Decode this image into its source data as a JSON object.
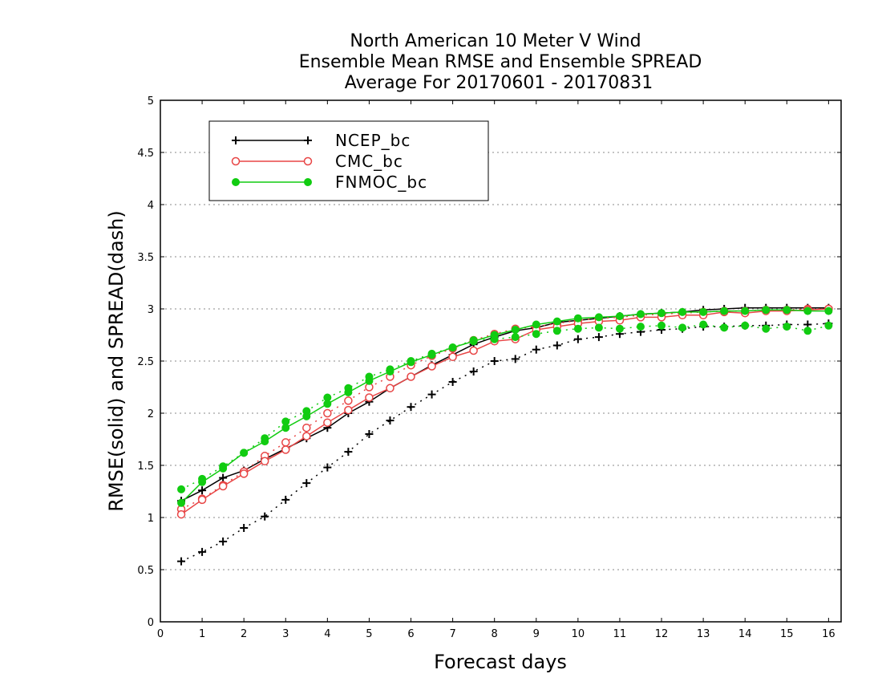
{
  "chart_data": {
    "type": "line",
    "title_lines": [
      "North American 10 Meter V Wind",
      "Ensemble Mean RMSE and Ensemble SPREAD",
      "Average For 20170601 - 20170831"
    ],
    "xlabel": "Forecast days",
    "ylabel": "RMSE(solid) and SPREAD(dash)",
    "xlim": [
      0,
      16.3
    ],
    "ylim": [
      0,
      5
    ],
    "xticks": [
      0,
      1,
      2,
      3,
      4,
      5,
      6,
      7,
      8,
      9,
      10,
      11,
      12,
      13,
      14,
      15,
      16
    ],
    "yticks": [
      0,
      0.5,
      1,
      1.5,
      2,
      2.5,
      3,
      3.5,
      4,
      4.5,
      5
    ],
    "xtick_labels": [
      "0",
      "1",
      "2",
      "3",
      "4",
      "5",
      "6",
      "7",
      "8",
      "9",
      "10",
      "11",
      "12",
      "13",
      "14",
      "15",
      "16"
    ],
    "ytick_labels": [
      "0",
      "0.5",
      "1",
      "1.5",
      "2",
      "2.5",
      "3",
      "3.5",
      "4",
      "4.5",
      "5"
    ],
    "grid": "horizontal dotted",
    "legend_position": "top-left",
    "x": [
      0.5,
      1,
      1.5,
      2,
      2.5,
      3,
      3.5,
      4,
      4.5,
      5,
      5.5,
      6,
      6.5,
      7,
      7.5,
      8,
      8.5,
      9,
      9.5,
      10,
      10.5,
      11,
      11.5,
      12,
      12.5,
      13,
      13.5,
      14,
      14.5,
      15,
      15.5,
      16
    ],
    "series": [
      {
        "name": "NCEP_bc",
        "color": "#000000",
        "marker": "plus",
        "rmse": [
          1.16,
          1.26,
          1.38,
          1.45,
          1.56,
          1.66,
          1.76,
          1.86,
          2.0,
          2.11,
          2.24,
          2.35,
          2.46,
          2.56,
          2.66,
          2.73,
          2.79,
          2.82,
          2.87,
          2.89,
          2.91,
          2.93,
          2.95,
          2.96,
          2.97,
          2.99,
          3.0,
          3.01,
          3.01,
          3.01,
          3.01,
          3.01
        ],
        "spread": [
          0.58,
          0.67,
          0.77,
          0.9,
          1.01,
          1.17,
          1.33,
          1.48,
          1.63,
          1.8,
          1.93,
          2.06,
          2.18,
          2.3,
          2.4,
          2.5,
          2.52,
          2.61,
          2.65,
          2.71,
          2.73,
          2.76,
          2.78,
          2.8,
          2.81,
          2.83,
          2.83,
          2.84,
          2.84,
          2.85,
          2.85,
          2.86
        ]
      },
      {
        "name": "CMC_bc",
        "color": "#e84545",
        "marker": "open-circle",
        "rmse": [
          1.03,
          1.17,
          1.3,
          1.42,
          1.54,
          1.65,
          1.78,
          1.91,
          2.03,
          2.15,
          2.24,
          2.35,
          2.45,
          2.54,
          2.6,
          2.69,
          2.71,
          2.8,
          2.83,
          2.86,
          2.88,
          2.89,
          2.92,
          2.92,
          2.94,
          2.94,
          2.97,
          2.96,
          2.98,
          2.98,
          2.99,
          3.0
        ],
        "spread": [
          1.08,
          1.18,
          1.31,
          1.44,
          1.59,
          1.72,
          1.86,
          2.0,
          2.12,
          2.25,
          2.35,
          2.46,
          2.55,
          2.62,
          2.7,
          2.76,
          2.81,
          2.83,
          2.86,
          2.89,
          2.91,
          2.92,
          2.94,
          2.95,
          2.96,
          2.97,
          2.98,
          2.98,
          2.99,
          2.99,
          3.0,
          3.0
        ]
      },
      {
        "name": "FNMOC_bc",
        "color": "#11cc11",
        "marker": "filled-circle",
        "rmse": [
          1.14,
          1.34,
          1.47,
          1.62,
          1.73,
          1.86,
          1.97,
          2.09,
          2.2,
          2.31,
          2.4,
          2.49,
          2.56,
          2.63,
          2.69,
          2.75,
          2.8,
          2.85,
          2.88,
          2.91,
          2.92,
          2.93,
          2.95,
          2.96,
          2.97,
          2.97,
          2.98,
          2.98,
          2.99,
          2.99,
          2.98,
          2.98
        ],
        "spread": [
          1.27,
          1.37,
          1.49,
          1.62,
          1.76,
          1.92,
          2.02,
          2.15,
          2.24,
          2.35,
          2.42,
          2.5,
          2.57,
          2.63,
          2.7,
          2.71,
          2.73,
          2.76,
          2.79,
          2.81,
          2.82,
          2.81,
          2.83,
          2.84,
          2.82,
          2.85,
          2.82,
          2.84,
          2.81,
          2.83,
          2.79,
          2.84
        ]
      }
    ]
  }
}
